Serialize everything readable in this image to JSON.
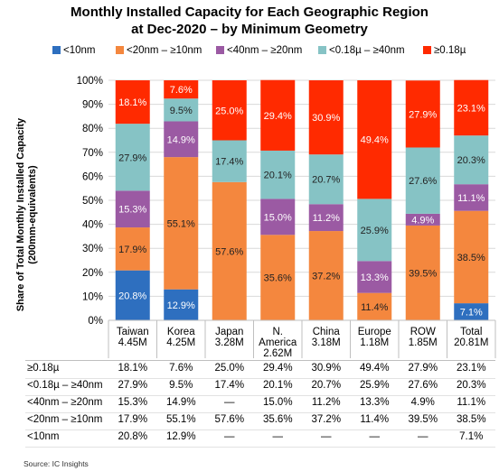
{
  "chart_data": {
    "type": "bar",
    "stacked": true,
    "title": "Monthly Installed Capacity for Each Geographic Region at Dec-2020 – by Minimum Geometry",
    "title_lines": [
      "Monthly Installed Capacity for Each Geographic Region",
      "at Dec-2020 – by Minimum Geometry"
    ],
    "ylabel_lines": [
      "Share of Total Monthly Installed Capacity",
      "(200mm-equivalents)"
    ],
    "ylim": [
      0,
      100
    ],
    "y_ticks": [
      "0%",
      "10%",
      "20%",
      "30%",
      "40%",
      "50%",
      "60%",
      "70%",
      "80%",
      "90%",
      "100%"
    ],
    "categories": [
      {
        "name": [
          "Taiwan"
        ],
        "total": "4.45M"
      },
      {
        "name": [
          "Korea"
        ],
        "total": "4.25M"
      },
      {
        "name": [
          "Japan"
        ],
        "total": "3.28M"
      },
      {
        "name": [
          "N.",
          "America"
        ],
        "total": "2.62M"
      },
      {
        "name": [
          "China"
        ],
        "total": "3.18M"
      },
      {
        "name": [
          "Europe"
        ],
        "total": "1.18M"
      },
      {
        "name": [
          "ROW"
        ],
        "total": "1.85M"
      },
      {
        "name": [
          "Total"
        ],
        "total": "20.81M"
      }
    ],
    "series": [
      {
        "name": "<10nm",
        "color": "#2e6fbf",
        "values": [
          20.8,
          12.9,
          0,
          0,
          0,
          0,
          0,
          7.1
        ],
        "labels": [
          "20.8%",
          "12.9%",
          "",
          "",
          "",
          "",
          "",
          "7.1%"
        ]
      },
      {
        "name": "<20nm – ≥10nm",
        "color": "#f4873e",
        "values": [
          17.9,
          55.1,
          57.6,
          35.6,
          37.2,
          11.4,
          39.5,
          38.5
        ],
        "labels": [
          "17.9%",
          "55.1%",
          "57.6%",
          "35.6%",
          "37.2%",
          "11.4%",
          "39.5%",
          "38.5%"
        ]
      },
      {
        "name": "<40nm – ≥20nm",
        "color": "#9b5aa3",
        "values": [
          15.3,
          14.9,
          0,
          15.0,
          11.2,
          13.3,
          4.9,
          11.1
        ],
        "labels": [
          "15.3%",
          "14.9%",
          "",
          "15.0%",
          "11.2%",
          "13.3%",
          "4.9%",
          "11.1%"
        ]
      },
      {
        "name": "<0.18µ – ≥40nm",
        "color": "#86c3c5",
        "values": [
          27.9,
          9.5,
          17.4,
          20.1,
          20.7,
          25.9,
          27.6,
          20.3
        ],
        "labels": [
          "27.9%",
          "9.5%",
          "17.4%",
          "20.1%",
          "20.7%",
          "25.9%",
          "27.6%",
          "20.3%"
        ]
      },
      {
        "name": "≥0.18µ",
        "color": "#ff2a00",
        "values": [
          18.1,
          7.6,
          25.0,
          29.4,
          30.9,
          49.4,
          27.9,
          23.1
        ],
        "labels": [
          "18.1%",
          "7.6%",
          "25.0%",
          "29.4%",
          "30.9%",
          "49.4%",
          "27.9%",
          "23.1%"
        ]
      }
    ],
    "table_rows": [
      {
        "label": "≥0.18µ",
        "cells": [
          "18.1%",
          "7.6%",
          "25.0%",
          "29.4%",
          "30.9%",
          "49.4%",
          "27.9%",
          "23.1%"
        ]
      },
      {
        "label": "<0.18µ – ≥40nm",
        "cells": [
          "27.9%",
          "9.5%",
          "17.4%",
          "20.1%",
          "20.7%",
          "25.9%",
          "27.6%",
          "20.3%"
        ]
      },
      {
        "label": "<40nm – ≥20nm",
        "cells": [
          "15.3%",
          "14.9%",
          "—",
          "15.0%",
          "11.2%",
          "13.3%",
          "4.9%",
          "11.1%"
        ]
      },
      {
        "label": "<20nm – ≥10nm",
        "cells": [
          "17.9%",
          "55.1%",
          "57.6%",
          "35.6%",
          "37.2%",
          "11.4%",
          "39.5%",
          "38.5%"
        ]
      },
      {
        "label": "<10nm",
        "cells": [
          "20.8%",
          "12.9%",
          "—",
          "—",
          "—",
          "—",
          "—",
          "7.1%"
        ]
      }
    ],
    "legend_position": "top",
    "grid": true
  },
  "source": "Source:  IC Insights"
}
